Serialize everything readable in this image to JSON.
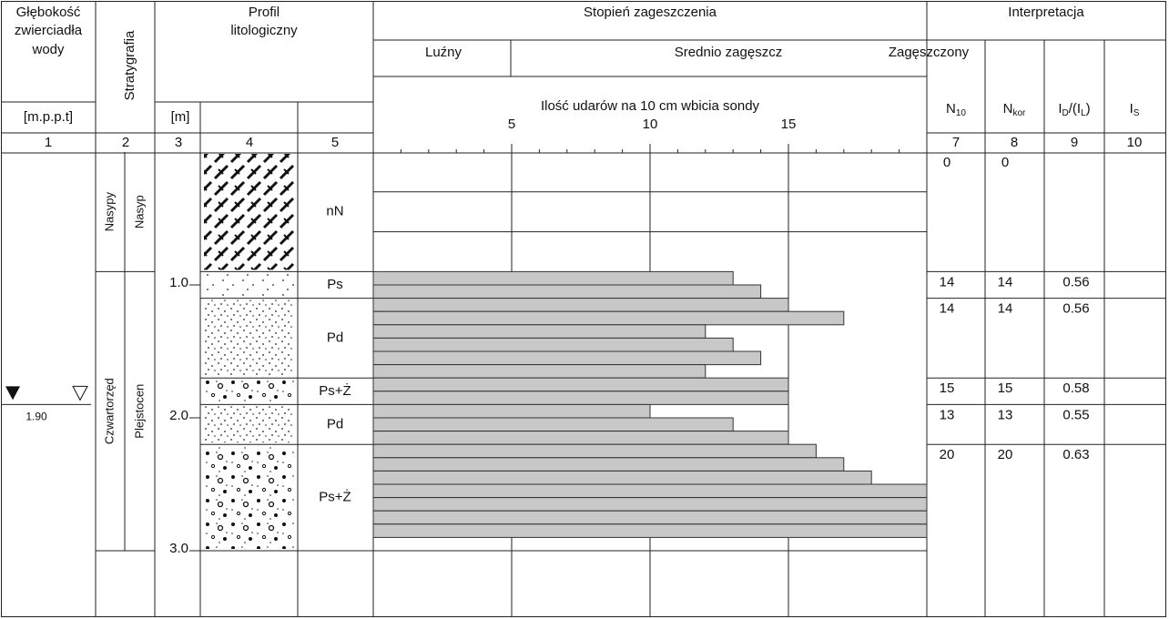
{
  "header": {
    "water_depth": [
      "Głębokość",
      "zwierciadła",
      "wody"
    ],
    "stratigraphy": "Stratygrafia",
    "profile": [
      "Profil",
      "litologiczny"
    ],
    "density": "Stopień zageszczenia",
    "interpretation": "Interpretacja",
    "density_classes": [
      "Luźny",
      "Srednio zagęszcz",
      "Zagęszczony"
    ],
    "unit_depth": "[m.p.p.t]",
    "unit_m": "[m]",
    "n10": {
      "main": "N",
      "sub": "10"
    },
    "nkor": {
      "main": "N",
      "sub": "kor"
    },
    "id": [
      "I",
      "D",
      "/(I",
      "L",
      ")"
    ],
    "is": {
      "main": "I",
      "sub": "S"
    },
    "col_numbers": [
      1,
      2,
      3,
      4,
      5,
      7,
      8,
      9,
      10
    ]
  },
  "water_level": {
    "value": 1.9,
    "label": "1.90"
  },
  "stratigraphy": [
    {
      "unit": "Nasypy",
      "sub": "Nasyp",
      "from": 0,
      "to": 0.9
    },
    {
      "unit": "Czwartorzęd",
      "sub": "Plejstocen",
      "from": 0.9,
      "to": 3.0
    }
  ],
  "layers": [
    {
      "code": "nN",
      "from": 0,
      "to": 0.9,
      "n10": 0,
      "nkor": 0
    },
    {
      "code": "Ps",
      "from": 0.9,
      "to": 1.1,
      "n10": 14,
      "nkor": 14,
      "id": 0.56
    },
    {
      "code": "Pd",
      "from": 1.1,
      "to": 1.7,
      "n10": 14,
      "nkor": 14,
      "id": 0.56
    },
    {
      "code": "Ps+Ż",
      "from": 1.7,
      "to": 1.9,
      "n10": 15,
      "nkor": 15,
      "id": 0.58
    },
    {
      "code": "Pd",
      "from": 1.9,
      "to": 2.2,
      "n10": 13,
      "nkor": 13,
      "id": 0.55
    },
    {
      "code": "Ps+Ż",
      "from": 2.2,
      "to": 3.0,
      "n10": 20,
      "nkor": 20,
      "id": 0.63
    }
  ],
  "chart_data": {
    "type": "bar",
    "orientation": "horizontal",
    "xlabel": "Ilość udarów na 10 cm wbicia sondy",
    "xlim": [
      0,
      20
    ],
    "xticks": [
      5,
      10,
      15
    ],
    "ylim": [
      0,
      3.5
    ],
    "yticks": [
      {
        "value": 1,
        "label": "1.0"
      },
      {
        "value": 2,
        "label": "2.0"
      },
      {
        "value": 3,
        "label": "3.0"
      }
    ],
    "y": [
      0.9,
      1.0,
      1.1,
      1.2,
      1.3,
      1.4,
      1.5,
      1.6,
      1.7,
      1.8,
      1.9,
      2.0,
      2.1,
      2.2,
      2.3,
      2.4,
      2.5,
      2.6,
      2.7,
      2.8
    ],
    "values": [
      13,
      14,
      15,
      17,
      12,
      13,
      14,
      12,
      15,
      15,
      10,
      13,
      15,
      16,
      17,
      18,
      20,
      20,
      20,
      20
    ],
    "color": "#c8c8c8"
  }
}
